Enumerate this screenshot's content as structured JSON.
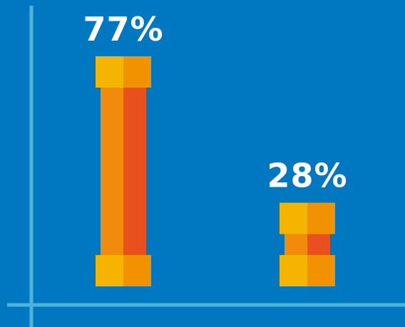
{
  "chart_data": {
    "type": "bar",
    "categories": [
      "",
      ""
    ],
    "values": [
      77,
      28
    ],
    "data_labels": [
      "77%",
      "28%"
    ],
    "title": "",
    "xlabel": "",
    "ylabel": "",
    "ylim": [
      0,
      100
    ],
    "grid": false,
    "legend": "none"
  },
  "colors": {
    "background": "#0078c1",
    "axis": "#4fb3d9",
    "bar_body_left": "#f28a0b",
    "bar_body_right": "#e8501e",
    "cap_left": "#f5b400",
    "cap_right": "#f39200",
    "label": "#ffffff"
  }
}
